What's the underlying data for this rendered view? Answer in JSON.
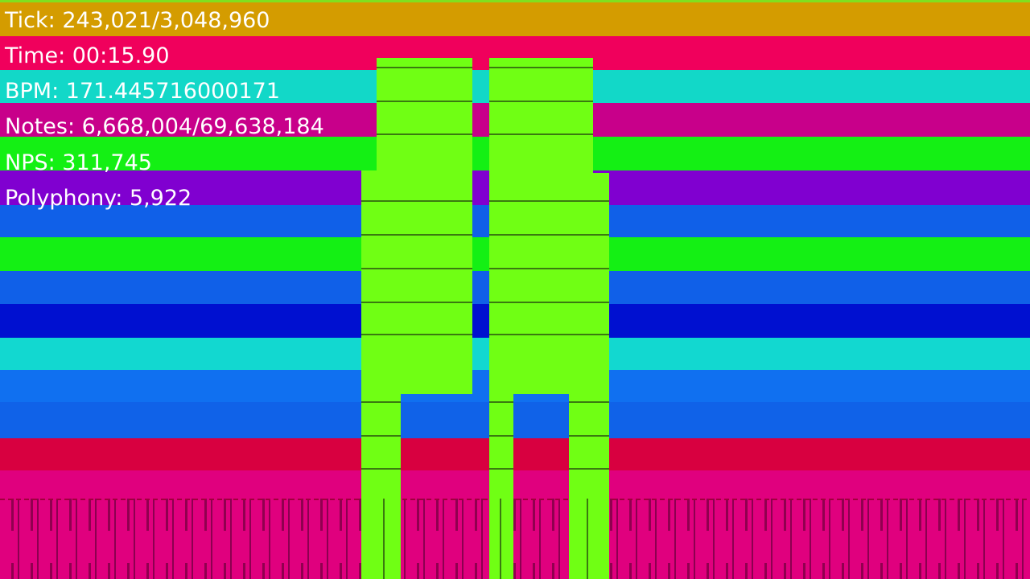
{
  "stats": [
    "Tick: 243,021/3,048,960",
    "Time: 00:15.90",
    "BPM: 171.445716000171",
    "Notes: 6,668,004/69,638,184",
    "NPS: 311,745",
    "Polyphony: 5,922"
  ]
}
